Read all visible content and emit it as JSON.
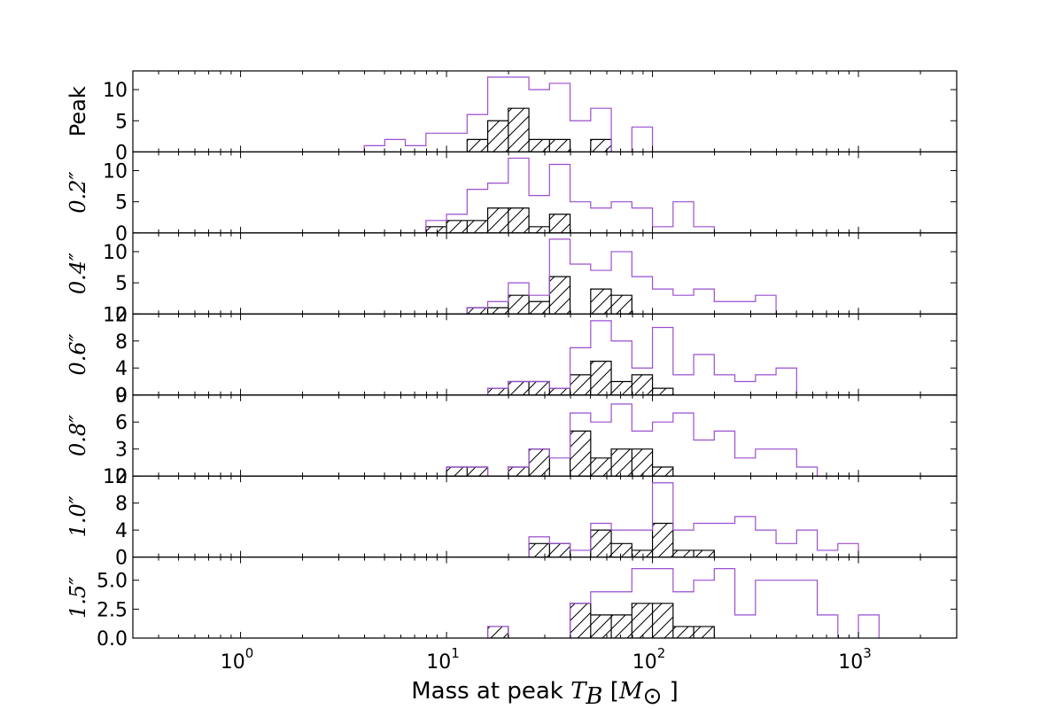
{
  "chart_data": {
    "type": "histogram-stack",
    "x_scale": "log",
    "xlim": [
      0.3,
      3000
    ],
    "x_ticks": [
      {
        "value": 1,
        "base": "10",
        "exp": "0"
      },
      {
        "value": 10,
        "base": "10",
        "exp": "1"
      },
      {
        "value": 100,
        "base": "10",
        "exp": "2"
      },
      {
        "value": 1000,
        "base": "10",
        "exp": "3"
      }
    ],
    "xlabel": {
      "text": "Mass at peak ",
      "math": "T",
      "math_sub": "B",
      "unit_open": " [",
      "unit_math": "M",
      "unit_sub": "⊙",
      "unit_close": " ]"
    },
    "series_colors": {
      "all": "#9a4fd0",
      "subset": "#000000"
    },
    "bin_edges_log10": [
      -0.3,
      -0.2,
      -0.1,
      0.0,
      0.1,
      0.2,
      0.3,
      0.4,
      0.5,
      0.6,
      0.7,
      0.8,
      0.9,
      1.0,
      1.1,
      1.2,
      1.3,
      1.4,
      1.5,
      1.6,
      1.7,
      1.8,
      1.9,
      2.0,
      2.1,
      2.2,
      2.3,
      2.4,
      2.5,
      2.6,
      2.7,
      2.8,
      2.9,
      3.0,
      3.1,
      3.2,
      3.3,
      3.4,
      3.5
    ],
    "panels": [
      {
        "label": "Peak",
        "label_math": false,
        "ylim": [
          0,
          13
        ],
        "y_ticks": [
          {
            "v": 0,
            "t": "0"
          },
          {
            "v": 5,
            "t": "5"
          },
          {
            "v": 10,
            "t": "10"
          }
        ],
        "all": [
          0,
          0,
          0,
          0,
          0,
          0,
          0,
          0,
          0,
          1,
          2,
          1,
          3,
          3,
          6,
          12,
          12,
          10,
          11,
          5,
          7,
          0,
          4,
          0,
          0,
          0,
          0,
          0,
          0,
          0,
          0,
          0,
          0,
          0,
          0,
          0,
          0,
          0
        ],
        "subset": [
          0,
          0,
          0,
          0,
          0,
          0,
          0,
          0,
          0,
          0,
          0,
          0,
          0,
          0,
          2,
          5,
          7,
          2,
          2,
          0,
          2,
          0,
          0,
          0,
          0,
          0,
          0,
          0,
          0,
          0,
          0,
          0,
          0,
          0,
          0,
          0,
          0,
          0
        ]
      },
      {
        "label": "0.2″",
        "label_math": true,
        "ylim": [
          0,
          13
        ],
        "y_ticks": [
          {
            "v": 0,
            "t": "0"
          },
          {
            "v": 5,
            "t": "5"
          },
          {
            "v": 10,
            "t": "10"
          }
        ],
        "all": [
          0,
          0,
          0,
          0,
          0,
          0,
          0,
          0,
          0,
          0,
          0,
          0,
          2,
          3,
          7,
          8,
          12,
          6,
          11,
          5,
          4,
          5,
          4,
          1,
          5,
          1,
          0,
          0,
          0,
          0,
          0,
          0,
          0,
          0,
          0,
          0,
          0,
          0
        ],
        "subset": [
          0,
          0,
          0,
          0,
          0,
          0,
          0,
          0,
          0,
          0,
          0,
          0,
          1,
          2,
          2,
          4,
          4,
          1,
          3,
          0,
          0,
          0,
          0,
          0,
          0,
          0,
          0,
          0,
          0,
          0,
          0,
          0,
          0,
          0,
          0,
          0,
          0,
          0
        ]
      },
      {
        "label": "0.4″",
        "label_math": true,
        "ylim": [
          0,
          13
        ],
        "y_ticks": [
          {
            "v": 0,
            "t": "0"
          },
          {
            "v": 5,
            "t": "5"
          },
          {
            "v": 10,
            "t": "10"
          }
        ],
        "all": [
          0,
          0,
          0,
          0,
          0,
          0,
          0,
          0,
          0,
          0,
          0,
          0,
          0,
          0,
          1,
          2,
          5,
          3,
          12,
          8,
          7,
          10,
          6,
          4,
          3,
          4,
          2,
          2,
          3,
          0,
          0,
          0,
          0,
          0,
          0,
          0,
          0,
          0
        ],
        "subset": [
          0,
          0,
          0,
          0,
          0,
          0,
          0,
          0,
          0,
          0,
          0,
          0,
          0,
          0,
          1,
          1,
          3,
          2,
          6,
          0,
          4,
          3,
          0,
          0,
          0,
          0,
          0,
          0,
          0,
          0,
          0,
          0,
          0,
          0,
          0,
          0,
          0,
          0
        ]
      },
      {
        "label": "0.6″",
        "label_math": true,
        "ylim": [
          0,
          12
        ],
        "y_ticks": [
          {
            "v": 0,
            "t": "0"
          },
          {
            "v": 4,
            "t": "4"
          },
          {
            "v": 8,
            "t": "8"
          },
          {
            "v": 12,
            "t": "12"
          }
        ],
        "all": [
          0,
          0,
          0,
          0,
          0,
          0,
          0,
          0,
          0,
          0,
          0,
          0,
          0,
          0,
          0,
          1,
          2,
          2,
          1,
          7,
          11,
          8,
          4,
          10,
          3,
          6,
          3,
          2,
          3,
          4,
          0,
          0,
          0,
          0,
          0,
          0,
          0,
          0
        ],
        "subset": [
          0,
          0,
          0,
          0,
          0,
          0,
          0,
          0,
          0,
          0,
          0,
          0,
          0,
          0,
          0,
          1,
          2,
          2,
          1,
          3,
          5,
          2,
          3,
          1,
          0,
          0,
          0,
          0,
          0,
          0,
          0,
          0,
          0,
          0,
          0,
          0,
          0,
          0
        ]
      },
      {
        "label": "0.8″",
        "label_math": true,
        "ylim": [
          0,
          9
        ],
        "y_ticks": [
          {
            "v": 0,
            "t": "0"
          },
          {
            "v": 3,
            "t": "3"
          },
          {
            "v": 6,
            "t": "6"
          },
          {
            "v": 9,
            "t": "9"
          }
        ],
        "all": [
          0,
          0,
          0,
          0,
          0,
          0,
          0,
          0,
          0,
          0,
          0,
          0,
          0,
          1,
          1,
          0,
          1,
          3,
          2,
          7,
          6,
          8,
          5,
          6,
          7,
          4,
          5,
          2,
          3,
          3,
          1,
          0,
          0,
          0,
          0,
          0,
          0,
          0
        ],
        "subset": [
          0,
          0,
          0,
          0,
          0,
          0,
          0,
          0,
          0,
          0,
          0,
          0,
          0,
          1,
          1,
          0,
          1,
          3,
          0,
          5,
          2,
          3,
          3,
          1,
          0,
          0,
          0,
          0,
          0,
          0,
          0,
          0,
          0,
          0,
          0,
          0,
          0,
          0
        ]
      },
      {
        "label": "1.0″",
        "label_math": true,
        "ylim": [
          0,
          12
        ],
        "y_ticks": [
          {
            "v": 0,
            "t": "0"
          },
          {
            "v": 4,
            "t": "4"
          },
          {
            "v": 8,
            "t": "8"
          },
          {
            "v": 12,
            "t": "12"
          }
        ],
        "all": [
          0,
          0,
          0,
          0,
          0,
          0,
          0,
          0,
          0,
          0,
          0,
          0,
          0,
          0,
          0,
          0,
          0,
          3,
          2,
          1,
          5,
          4,
          4,
          11,
          4,
          5,
          5,
          6,
          4,
          2,
          4,
          1,
          2,
          0,
          0,
          0,
          0,
          0
        ],
        "subset": [
          0,
          0,
          0,
          0,
          0,
          0,
          0,
          0,
          0,
          0,
          0,
          0,
          0,
          0,
          0,
          0,
          0,
          2,
          2,
          0,
          4,
          2,
          1,
          5,
          1,
          1,
          0,
          0,
          0,
          0,
          0,
          0,
          0,
          0,
          0,
          0,
          0,
          0
        ]
      },
      {
        "label": "1.5″",
        "label_math": true,
        "ylim": [
          0,
          7
        ],
        "y_ticks": [
          {
            "v": 0,
            "t": "0.0"
          },
          {
            "v": 2.5,
            "t": "2.5"
          },
          {
            "v": 5,
            "t": "5.0"
          }
        ],
        "all": [
          0,
          0,
          0,
          0,
          0,
          0,
          0,
          0,
          0,
          0,
          0,
          0,
          0,
          0,
          0,
          1,
          0,
          0,
          0,
          3,
          4,
          4,
          6,
          6,
          4,
          5,
          6,
          2,
          5,
          5,
          5,
          2,
          0,
          2,
          0,
          0,
          0,
          0
        ],
        "subset": [
          0,
          0,
          0,
          0,
          0,
          0,
          0,
          0,
          0,
          0,
          0,
          0,
          0,
          0,
          0,
          1,
          0,
          0,
          0,
          3,
          2,
          2,
          3,
          3,
          1,
          1,
          0,
          0,
          0,
          0,
          0,
          0,
          0,
          0,
          0,
          0,
          0,
          0
        ]
      }
    ]
  }
}
